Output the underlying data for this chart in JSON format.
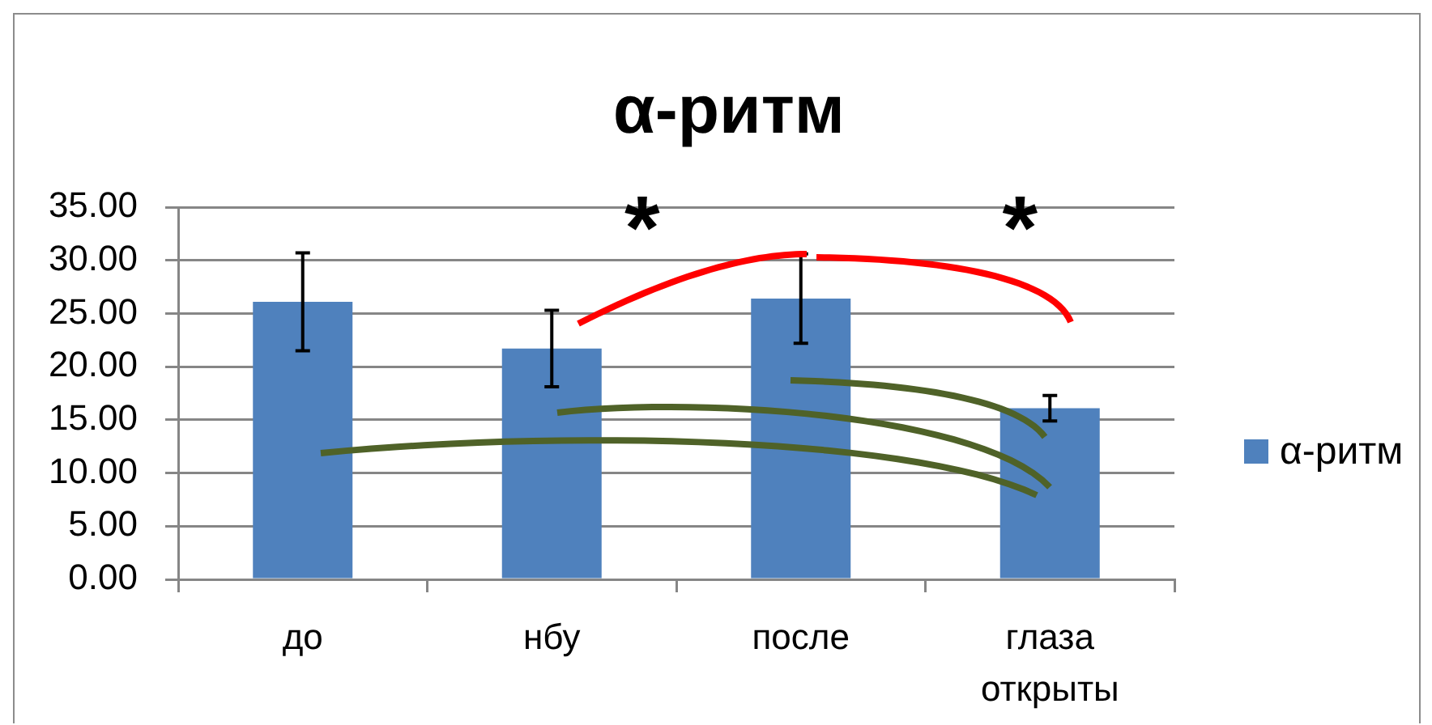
{
  "chart_data": {
    "type": "bar",
    "title": "α-ритм",
    "categories": [
      "до",
      "нбу",
      "после",
      "глаза открыты"
    ],
    "series": [
      {
        "name": "α-ритм",
        "color": "#4f81bd",
        "values": [
          26.1,
          21.7,
          26.4,
          16.1
        ],
        "errors": [
          4.6,
          3.6,
          4.2,
          1.2
        ]
      }
    ],
    "ylim": [
      0,
      35
    ],
    "yticks": [
      {
        "value": 0,
        "label": "0.00"
      },
      {
        "value": 5,
        "label": "5.00"
      },
      {
        "value": 10,
        "label": "10.00"
      },
      {
        "value": 15,
        "label": "15.00"
      },
      {
        "value": 20,
        "label": "20.00"
      },
      {
        "value": 25,
        "label": "25.00"
      },
      {
        "value": 30,
        "label": "30.00"
      },
      {
        "value": 35,
        "label": "35.00"
      }
    ],
    "grid": "y",
    "legend": "right",
    "annotations": [
      {
        "text": "*",
        "x": "после",
        "y": 30.6
      },
      "*"
    ]
  }
}
